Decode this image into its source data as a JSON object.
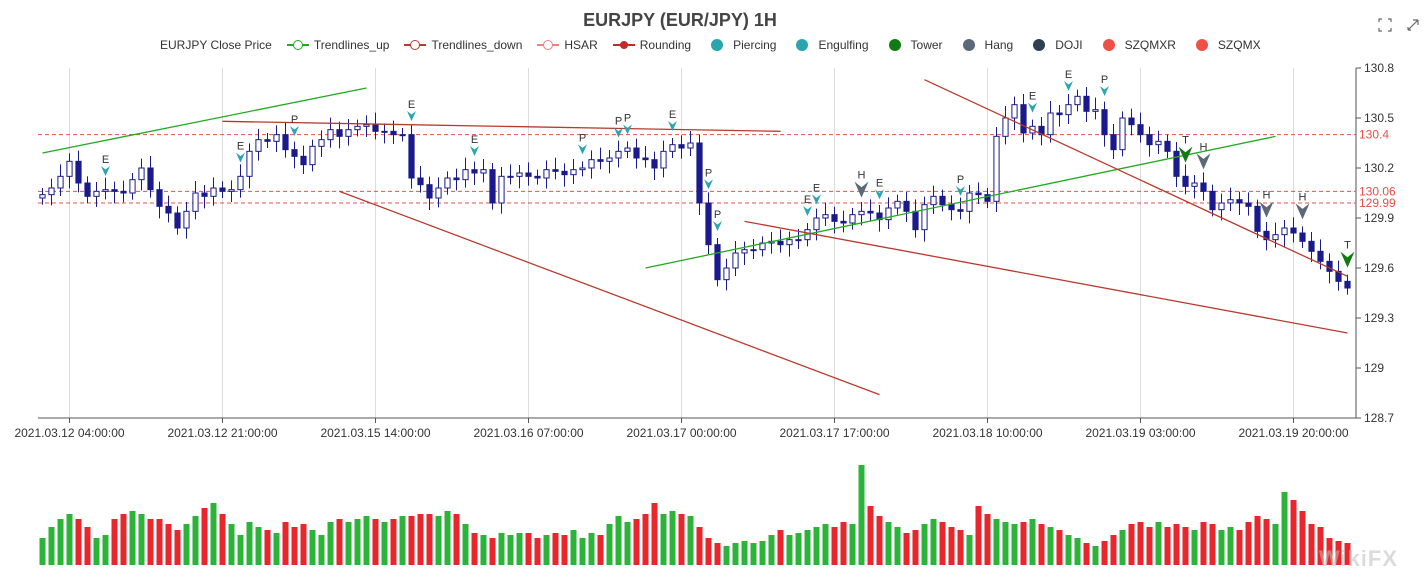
{
  "title": "EURJPY (EUR/JPY) 1H",
  "toolbar": {
    "zoom_icon": "zoom-icon",
    "restore_icon": "restore-icon"
  },
  "legend": [
    {
      "label": "EURJPY Close Price",
      "kind": "none",
      "color": "#333333"
    },
    {
      "label": "Trendlines_up",
      "kind": "ring-line",
      "color": "#22aa22"
    },
    {
      "label": "Trendlines_down",
      "kind": "ring-line",
      "color": "#b83a2e"
    },
    {
      "label": "HSAR",
      "kind": "ring-line",
      "color": "#f08080"
    },
    {
      "label": "Rounding",
      "kind": "small-dot-line",
      "color": "#c62828"
    },
    {
      "label": "Piercing",
      "kind": "dot",
      "color": "#2aa5b0"
    },
    {
      "label": "Engulfing",
      "kind": "dot",
      "color": "#2aa5b0"
    },
    {
      "label": "Tower",
      "kind": "dot",
      "color": "#127a12"
    },
    {
      "label": "Hang",
      "kind": "dot",
      "color": "#5a6878"
    },
    {
      "label": "DOJI",
      "kind": "dot",
      "color": "#2f3e50"
    },
    {
      "label": "SZQMXR",
      "kind": "dot",
      "color": "#ef5045"
    },
    {
      "label": "SZQMX",
      "kind": "dot",
      "color": "#ef5045"
    }
  ],
  "watermark": "WikiFX",
  "colors": {
    "up_candle": "#1a1a8c",
    "volume_up": "#2bb33a",
    "volume_down": "#e8262c",
    "hsar": "#e8504a",
    "trend_up": "#22aa22",
    "trend_down": "#b83a2e",
    "piercing": "#2aa5b0",
    "tower": "#127a12",
    "hang": "#5a6878"
  },
  "chart_data": {
    "type": "candlestick",
    "y_axis": {
      "min": 128.7,
      "max": 130.8,
      "ticks": [
        "128.7",
        "129",
        "129.3",
        "129.6",
        "129.9",
        "130.2",
        "130.5",
        "130.8"
      ],
      "position": "right"
    },
    "x_axis": {
      "ticks": [
        "2021.03.12 04:00:00",
        "2021.03.12 21:00:00",
        "2021.03.15 14:00:00",
        "2021.03.16 07:00:00",
        "2021.03.17 00:00:00",
        "2021.03.17 17:00:00",
        "2021.03.18 10:00:00",
        "2021.03.19 03:00:00",
        "2021.03.19 20:00:00"
      ],
      "tick_bar_index": [
        3,
        20,
        37,
        54,
        71,
        88,
        105,
        122,
        139
      ]
    },
    "bar_count": 146,
    "closes": [
      130.04,
      130.08,
      130.15,
      130.24,
      130.11,
      130.03,
      130.06,
      130.07,
      130.06,
      130.05,
      130.13,
      130.2,
      130.07,
      129.97,
      129.93,
      129.84,
      129.94,
      130.05,
      130.03,
      130.08,
      130.06,
      130.07,
      130.15,
      130.3,
      130.37,
      130.36,
      130.4,
      130.31,
      130.27,
      130.22,
      130.33,
      130.37,
      130.43,
      130.39,
      130.43,
      130.45,
      130.46,
      130.42,
      130.42,
      130.4,
      130.4,
      130.14,
      130.1,
      130.02,
      130.08,
      130.14,
      130.13,
      130.19,
      130.17,
      130.19,
      129.99,
      130.15,
      130.15,
      130.17,
      130.15,
      130.14,
      130.19,
      130.18,
      130.16,
      130.19,
      130.2,
      130.25,
      130.24,
      130.26,
      130.3,
      130.32,
      130.26,
      130.25,
      130.2,
      130.3,
      130.34,
      130.32,
      130.35,
      129.99,
      129.74,
      129.53,
      129.6,
      129.69,
      129.71,
      129.71,
      129.75,
      129.76,
      129.74,
      129.77,
      129.77,
      129.83,
      129.9,
      129.92,
      129.88,
      129.87,
      129.92,
      129.94,
      129.93,
      129.89,
      129.96,
      130.0,
      129.94,
      129.83,
      129.98,
      130.03,
      129.98,
      129.95,
      129.94,
      130.05,
      130.04,
      130.0,
      130.39,
      130.5,
      130.58,
      130.41,
      130.45,
      130.4,
      130.53,
      130.52,
      130.58,
      130.63,
      130.54,
      130.55,
      130.4,
      130.31,
      130.5,
      130.46,
      130.4,
      130.34,
      130.36,
      130.3,
      130.15,
      130.09,
      130.11,
      130.06,
      129.95,
      129.99,
      130.01,
      129.99,
      129.97,
      129.82,
      129.77,
      129.8,
      129.84,
      129.81,
      129.76,
      129.7,
      129.64,
      129.58,
      129.52,
      129.48,
      129.47,
      129.44,
      129.38,
      129.42
    ],
    "hsar_levels": [
      130.4,
      130.06,
      129.99
    ],
    "trendlines_up": [
      {
        "from_index": 0,
        "from_value": 130.29,
        "to_index": 36,
        "to_value": 130.68
      },
      {
        "from_index": 67,
        "from_value": 129.6,
        "to_index": 137,
        "to_value": 130.39
      }
    ],
    "trendlines_down": [
      {
        "from_index": 20,
        "from_value": 130.48,
        "to_index": 82,
        "to_value": 130.42
      },
      {
        "from_index": 33,
        "from_value": 130.06,
        "to_index": 93,
        "to_value": 128.84
      },
      {
        "from_index": 78,
        "from_value": 129.88,
        "to_index": 145,
        "to_value": 129.21
      },
      {
        "from_index": 98,
        "from_value": 130.73,
        "to_index": 145,
        "to_value": 129.55
      }
    ],
    "patterns": [
      {
        "index": 7,
        "label": "E",
        "type": "engulfing"
      },
      {
        "index": 22,
        "label": "E",
        "type": "engulfing"
      },
      {
        "index": 28,
        "label": "P",
        "type": "piercing"
      },
      {
        "index": 41,
        "label": "E",
        "type": "engulfing"
      },
      {
        "index": 48,
        "label": "E",
        "type": "engulfing"
      },
      {
        "index": 60,
        "label": "P",
        "type": "piercing"
      },
      {
        "index": 64,
        "label": "P",
        "type": "piercing"
      },
      {
        "index": 65,
        "label": "P",
        "type": "piercing"
      },
      {
        "index": 70,
        "label": "E",
        "type": "engulfing"
      },
      {
        "index": 74,
        "label": "P",
        "type": "piercing"
      },
      {
        "index": 75,
        "label": "P",
        "type": "piercing"
      },
      {
        "index": 85,
        "label": "E",
        "type": "engulfing"
      },
      {
        "index": 86,
        "label": "E",
        "type": "engulfing"
      },
      {
        "index": 91,
        "label": "H",
        "type": "hang"
      },
      {
        "index": 93,
        "label": "E",
        "type": "engulfing"
      },
      {
        "index": 102,
        "label": "P",
        "type": "piercing"
      },
      {
        "index": 110,
        "label": "E",
        "type": "engulfing"
      },
      {
        "index": 114,
        "label": "E",
        "type": "engulfing"
      },
      {
        "index": 118,
        "label": "P",
        "type": "piercing"
      },
      {
        "index": 127,
        "label": "T",
        "type": "tower"
      },
      {
        "index": 129,
        "label": "H",
        "type": "hang"
      },
      {
        "index": 136,
        "label": "H",
        "type": "hang"
      },
      {
        "index": 140,
        "label": "H",
        "type": "hang"
      },
      {
        "index": 145,
        "label": "T",
        "type": "tower"
      }
    ],
    "volume_relative": [
      0.27,
      0.38,
      0.46,
      0.51,
      0.46,
      0.38,
      0.27,
      0.3,
      0.46,
      0.51,
      0.54,
      0.51,
      0.46,
      0.46,
      0.41,
      0.35,
      0.41,
      0.49,
      0.57,
      0.62,
      0.51,
      0.41,
      0.3,
      0.43,
      0.38,
      0.35,
      0.32,
      0.43,
      0.38,
      0.41,
      0.35,
      0.3,
      0.43,
      0.46,
      0.43,
      0.46,
      0.49,
      0.46,
      0.43,
      0.46,
      0.49,
      0.49,
      0.51,
      0.51,
      0.49,
      0.54,
      0.51,
      0.41,
      0.32,
      0.3,
      0.27,
      0.32,
      0.3,
      0.32,
      0.32,
      0.27,
      0.3,
      0.32,
      0.3,
      0.35,
      0.27,
      0.32,
      0.3,
      0.41,
      0.49,
      0.43,
      0.46,
      0.51,
      0.62,
      0.51,
      0.54,
      0.51,
      0.49,
      0.38,
      0.27,
      0.22,
      0.19,
      0.22,
      0.24,
      0.22,
      0.24,
      0.3,
      0.35,
      0.3,
      0.32,
      0.35,
      0.38,
      0.41,
      0.38,
      0.43,
      0.41,
      1.0,
      0.59,
      0.49,
      0.43,
      0.38,
      0.32,
      0.35,
      0.41,
      0.46,
      0.43,
      0.38,
      0.35,
      0.3,
      0.59,
      0.51,
      0.46,
      0.43,
      0.41,
      0.43,
      0.46,
      0.41,
      0.38,
      0.35,
      0.3,
      0.27,
      0.22,
      0.19,
      0.24,
      0.3,
      0.35,
      0.41,
      0.43,
      0.38,
      0.43,
      0.38,
      0.41,
      0.38,
      0.35,
      0.43,
      0.41,
      0.35,
      0.38,
      0.35,
      0.43,
      0.49,
      0.46,
      0.41,
      0.73,
      0.65,
      0.54,
      0.41,
      0.38,
      0.27,
      0.24,
      0.22
    ]
  }
}
